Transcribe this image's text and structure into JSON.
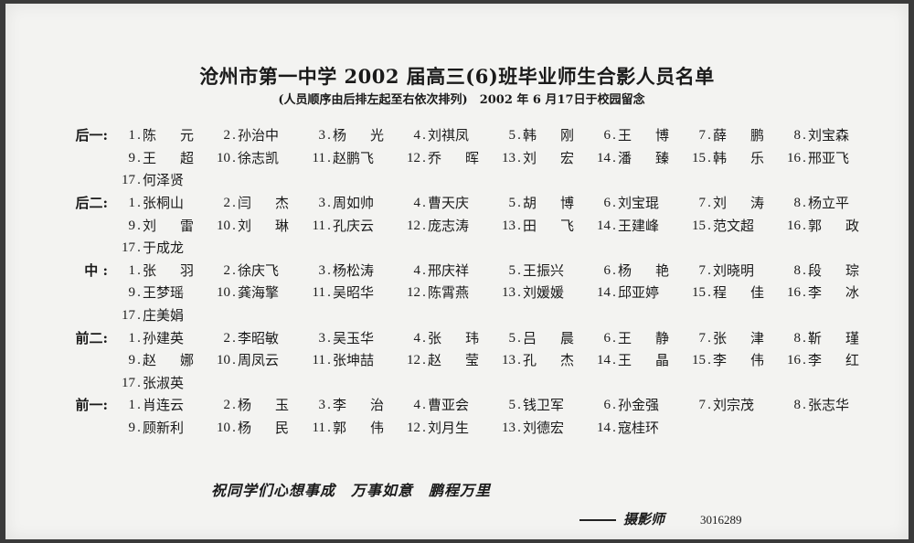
{
  "title": "沧州市第一中学 2002 届高三(6)班毕业师生合影人员名单",
  "subtitle": "(人员顺序由后排左起至右依次排列)　2002 年 6 月17日于校园留念",
  "groups": [
    {
      "label": "后一:",
      "names": [
        "陈元",
        "孙治中",
        "杨光",
        "刘祺凤",
        "韩刚",
        "王博",
        "薛鹏",
        "刘宝森",
        "王超",
        "徐志凯",
        "赵鹏飞",
        "乔晖",
        "刘宏",
        "潘臻",
        "韩乐",
        "邢亚飞",
        "何泽贤"
      ]
    },
    {
      "label": "后二:",
      "names": [
        "张桐山",
        "闫杰",
        "周如帅",
        "曹天庆",
        "胡博",
        "刘宝琨",
        "刘涛",
        "杨立平",
        "刘雷",
        "刘琳",
        "孔庆云",
        "庞志涛",
        "田飞",
        "王建峰",
        "范文超",
        "郭政",
        "于成龙"
      ]
    },
    {
      "label": "中 :",
      "names": [
        "张羽",
        "徐庆飞",
        "杨松涛",
        "邢庆祥",
        "王振兴",
        "杨艳",
        "刘晓明",
        "段琮",
        "王梦瑶",
        "龚海擎",
        "吴昭华",
        "陈霄燕",
        "刘媛媛",
        "邱亚婷",
        "程佳",
        "李冰",
        "庄美娟"
      ]
    },
    {
      "label": "前二:",
      "names": [
        "孙建英",
        "李昭敏",
        "吴玉华",
        "张玮",
        "吕晨",
        "王静",
        "张津",
        "靳瑾",
        "赵娜",
        "周凤云",
        "张坤喆",
        "赵莹",
        "孔杰",
        "王晶",
        "李伟",
        "李红",
        "张淑英"
      ]
    },
    {
      "label": "前一:",
      "names": [
        "肖连云",
        "杨玉",
        "李治",
        "曹亚会",
        "钱卫军",
        "孙金强",
        "刘宗茂",
        "张志华",
        "顾新利",
        "杨民",
        "郭伟",
        "刘月生",
        "刘德宏",
        "寇桂环"
      ]
    }
  ],
  "footer": {
    "slogan": "祝同学们心想事成　万事如意　鹏程万里",
    "signature": "摄影师",
    "code": "3016289"
  }
}
